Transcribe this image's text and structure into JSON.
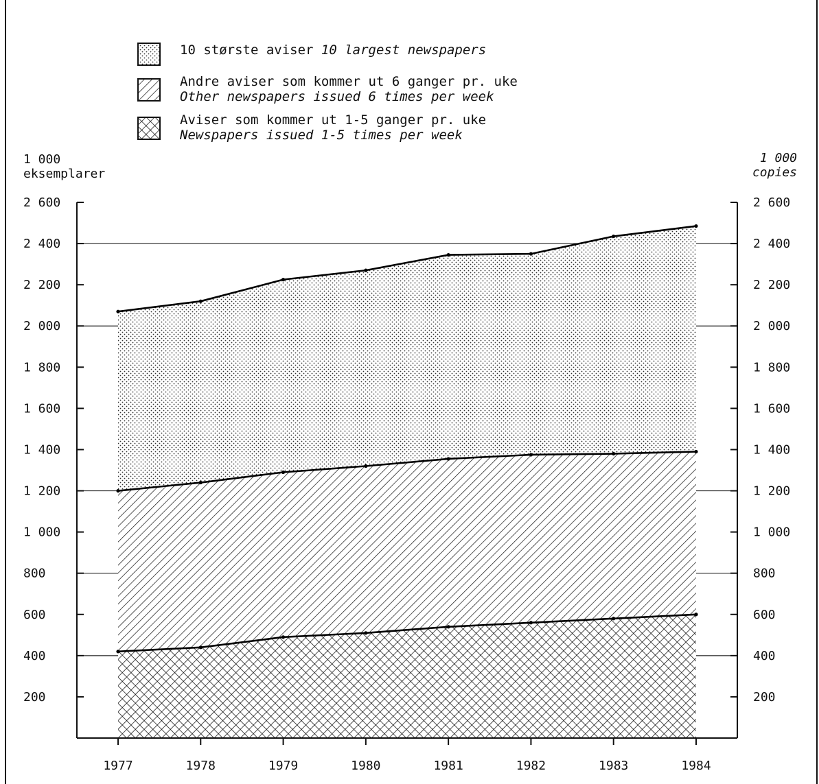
{
  "legend": {
    "items": [
      {
        "pattern": "dots",
        "line1": "10 største aviser",
        "line1_it": "10 largest newspapers",
        "line2": ""
      },
      {
        "pattern": "hatch",
        "line1": "Andre aviser som kommer ut 6 ganger pr. uke",
        "line1_it": "",
        "line2": "Other newspapers issued 6 times per week"
      },
      {
        "pattern": "cross",
        "line1": "Aviser som kommer ut 1-5 ganger pr. uke",
        "line1_it": "",
        "line2": "Newspapers issued 1-5 times per week"
      }
    ]
  },
  "axis_captions": {
    "left_line1": "1 000",
    "left_line2": "eksemplarer",
    "right_line1": "1 000",
    "right_line2": "copies"
  },
  "chart_data": {
    "type": "area",
    "stacked": true,
    "x": [
      "1977",
      "1978",
      "1979",
      "1980",
      "1981",
      "1982",
      "1983",
      "1984"
    ],
    "series": [
      {
        "name": "Aviser som kommer ut 1-5 ganger pr. uke / Newspapers issued 1-5 times per week",
        "pattern": "cross",
        "values": [
          420,
          440,
          490,
          510,
          540,
          560,
          580,
          600
        ]
      },
      {
        "name": "Andre aviser som kommer ut 6 ganger pr. uke / Other newspapers issued 6 times per week",
        "pattern": "hatch",
        "values": [
          780,
          800,
          800,
          810,
          815,
          815,
          800,
          790
        ]
      },
      {
        "name": "10 største aviser / 10 largest newspapers",
        "pattern": "dots",
        "values": [
          870,
          880,
          935,
          950,
          990,
          975,
          1055,
          1095
        ]
      }
    ],
    "totals": [
      2070,
      2120,
      2225,
      2270,
      2345,
      2350,
      2435,
      2485
    ],
    "ylim": [
      0,
      2600
    ],
    "yticks": [
      200,
      400,
      600,
      800,
      1000,
      1200,
      1400,
      1600,
      1800,
      2000,
      2200,
      2400,
      2600
    ],
    "ytick_labels": [
      "200",
      "400",
      "600",
      "800",
      "1 000",
      "1 200",
      "1 400",
      "1 600",
      "1 800",
      "2 000",
      "2 200",
      "2 400",
      "2 600"
    ],
    "gridlines": [
      400,
      800,
      1200,
      2000,
      2400
    ],
    "dual_y_axis": true,
    "legend_position": "top"
  }
}
